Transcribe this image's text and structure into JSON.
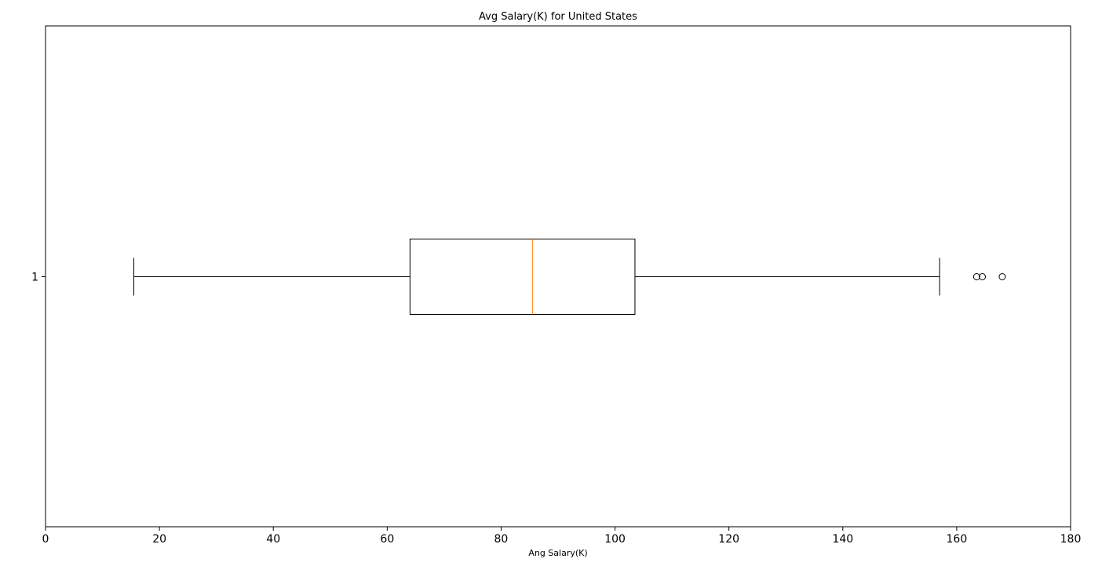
{
  "chart_data": {
    "type": "boxplot",
    "orientation": "horizontal",
    "title": "Avg Salary(K) for United States",
    "xlabel": "Ang Salary(K)",
    "ylabel": "",
    "xlim": [
      0,
      180
    ],
    "x_ticks": [
      0,
      20,
      40,
      60,
      80,
      100,
      120,
      140,
      160,
      180
    ],
    "y_ticks": [
      "1"
    ],
    "grid": false,
    "boxes": [
      {
        "label": "1",
        "whisker_low": 15.5,
        "q1": 64,
        "median": 85.5,
        "q3": 103.5,
        "whisker_high": 157,
        "outliers": [
          163.5,
          164.5,
          168
        ]
      }
    ],
    "colors": {
      "box": "#000000",
      "median": "#ff7f0e",
      "whisker": "#000000",
      "outlier": "#000000"
    }
  }
}
